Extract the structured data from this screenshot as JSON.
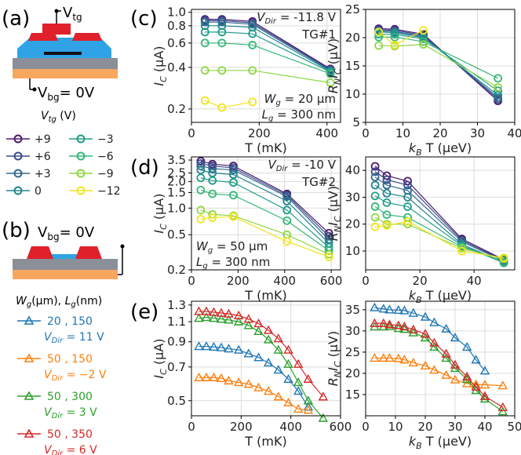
{
  "figure": {
    "panel_letters": [
      "(a)",
      "(b)",
      "(c)",
      "(d)",
      "(e)"
    ],
    "schematic_a": {
      "vtg_label": "V",
      "vtg_sub": "tg",
      "vbg_label": "V",
      "vbg_sub": "bg",
      "vbg_value": "= 0V"
    },
    "schematic_b": {
      "vbg_label": "V",
      "vbg_sub": "bg",
      "vbg_value": "= 0V"
    },
    "legend_vtg": {
      "title_var": "V",
      "title_sub": "tg",
      "title_unit": " (V)",
      "entries": [
        {
          "label": "+9",
          "color": "#4b1a6e"
        },
        {
          "label": "+6",
          "color": "#3b4a8c"
        },
        {
          "label": "+3",
          "color": "#31688e"
        },
        {
          "label": "0",
          "color": "#23868e"
        },
        {
          "label": "−3",
          "color": "#1f9e89"
        },
        {
          "label": "−6",
          "color": "#35b779"
        },
        {
          "label": "−9",
          "color": "#8fd744"
        },
        {
          "label": "−12",
          "color": "#f1e51d"
        }
      ]
    },
    "legend_wl": {
      "title_w": "W",
      "title_w_sub": "g",
      "title_w_unit": "(μm), ",
      "title_l": "L",
      "title_l_sub": "g",
      "title_l_unit": "(nm)",
      "entries": [
        {
          "wl": "20 ,  150",
          "vdir_var": "V",
          "vdir_sub": "Dir",
          "vdir_val": " = 11 V",
          "color": "#1f77b4"
        },
        {
          "wl": "50 ,  150",
          "vdir_var": "V",
          "vdir_sub": "Dir",
          "vdir_val": " = −2 V",
          "color": "#ff7f0e"
        },
        {
          "wl": "50 ,  300",
          "vdir_var": "V",
          "vdir_sub": "Dir",
          "vdir_val": " = 3 V",
          "color": "#2ca02c"
        },
        {
          "wl": "50 ,  350",
          "vdir_var": "V",
          "vdir_sub": "Dir",
          "vdir_val": " = 6 V",
          "color": "#d62728"
        }
      ]
    }
  },
  "chart_data": [
    {
      "id": "c-left",
      "type": "line",
      "marker": "circle",
      "yscale": "log",
      "xlim": [
        0,
        440
      ],
      "ylim": [
        0.16,
        1.05
      ],
      "xticks": [
        0,
        200,
        400
      ],
      "yticks": [
        0.2,
        0.4,
        0.6,
        0.8,
        1.0
      ],
      "ytick_labels": [
        "0.2",
        "0.4",
        "0.6",
        "0.8",
        "1.0"
      ],
      "xlabel": "T (mK)",
      "ylabel_var": "I",
      "ylabel_sub": "C",
      "ylabel_unit": " (μA)",
      "annotations": [
        {
          "text": "V",
          "sub": "Dir",
          "rest": " = -11.8 V",
          "loc": "top-right"
        },
        {
          "text": "TG#1",
          "loc": "top-right-2"
        },
        {
          "text": "W",
          "sub": "g",
          "rest": " = 20 μm",
          "loc": "bottom-right"
        },
        {
          "text": "L",
          "sub": "g",
          "rest": " = 300 nm",
          "loc": "bottom-right-2"
        }
      ],
      "x": [
        40,
        90,
        180,
        410
      ],
      "series": [
        {
          "name": "+9",
          "values": [
            0.89,
            0.89,
            0.86,
            0.39
          ]
        },
        {
          "name": "+6",
          "values": [
            0.87,
            0.87,
            0.84,
            0.385
          ]
        },
        {
          "name": "+3",
          "values": [
            0.85,
            0.85,
            0.82,
            0.38
          ]
        },
        {
          "name": "0",
          "values": [
            0.8,
            0.8,
            0.78,
            0.375
          ]
        },
        {
          "name": "−3",
          "values": [
            0.72,
            0.72,
            0.7,
            0.37
          ]
        },
        {
          "name": "−6",
          "values": [
            0.6,
            0.6,
            0.58,
            0.36
          ]
        },
        {
          "name": "−9",
          "values": [
            0.38,
            0.38,
            0.38,
            0.31
          ]
        },
        {
          "name": "−12",
          "values": [
            0.23,
            0.205,
            0.225,
            null
          ]
        }
      ]
    },
    {
      "id": "c-right",
      "type": "line",
      "marker": "circle",
      "yscale": "linear",
      "xlim": [
        0,
        40
      ],
      "ylim": [
        5,
        25
      ],
      "xticks": [
        0,
        10,
        20,
        30,
        40
      ],
      "yticks": [
        5,
        10,
        15,
        20,
        25
      ],
      "xlabel_var": "k",
      "xlabel_sub": "B",
      "xlabel_unit": " T (μeV)",
      "ylabel_var": "R",
      "ylabel_sub": "N",
      "ylabel_var2": "I",
      "ylabel_sub2": "C",
      "ylabel_unit": " (μV)",
      "x": [
        3.5,
        7.8,
        15.5,
        35.5
      ],
      "series": [
        {
          "name": "+9",
          "values": [
            21.6,
            21.5,
            20.6,
            8.8
          ]
        },
        {
          "name": "+6",
          "values": [
            21.4,
            21.3,
            20.4,
            9.1
          ]
        },
        {
          "name": "+3",
          "values": [
            21.2,
            21.1,
            20.2,
            9.4
          ]
        },
        {
          "name": "0",
          "values": [
            21.0,
            20.9,
            20.0,
            9.8
          ]
        },
        {
          "name": "−3",
          "values": [
            20.6,
            20.6,
            19.8,
            10.6
          ]
        },
        {
          "name": "−6",
          "values": [
            20.1,
            20.1,
            19.3,
            12.8
          ]
        },
        {
          "name": "−9",
          "values": [
            18.6,
            18.5,
            18.8,
            11.2
          ]
        },
        {
          "name": "−12",
          "values": [
            21.0,
            18.7,
            21.3,
            null
          ]
        }
      ]
    },
    {
      "id": "d-left",
      "type": "line",
      "marker": "circle",
      "yscale": "log",
      "xlim": [
        0,
        640
      ],
      "ylim": [
        0.2,
        3.8
      ],
      "xticks": [
        0,
        200,
        400,
        600
      ],
      "yticks": [
        0.2,
        0.5,
        1.0,
        1.5,
        2.0,
        2.5,
        3.5
      ],
      "ytick_labels": [
        "0.2",
        "0.5",
        "1.0",
        "1.5",
        "2.0",
        "2.5",
        "3.5"
      ],
      "xlabel": "T (mK)",
      "ylabel_var": "I",
      "ylabel_sub": "C",
      "ylabel_unit": " (μA)",
      "annotations": [
        {
          "text": "V",
          "sub": "Dir",
          "rest": " = -10 V",
          "loc": "top-right"
        },
        {
          "text": "TG#2",
          "loc": "top-right-2"
        },
        {
          "text": "W",
          "sub": "g",
          "rest": " = 50 μm",
          "loc": "bottom-left"
        },
        {
          "text": "L",
          "sub": "g",
          "rest": " = 300 nm",
          "loc": "bottom-left-2"
        }
      ],
      "x": [
        40,
        90,
        180,
        410,
        590
      ],
      "series": [
        {
          "name": "+9",
          "values": [
            3.4,
            3.15,
            3.0,
            1.45,
            0.52
          ]
        },
        {
          "name": "+6",
          "values": [
            3.2,
            3.0,
            2.85,
            1.4,
            0.48
          ]
        },
        {
          "name": "+3",
          "values": [
            3.0,
            2.8,
            2.7,
            1.35,
            0.44
          ]
        },
        {
          "name": "0",
          "values": [
            2.7,
            2.5,
            2.4,
            1.2,
            0.4
          ]
        },
        {
          "name": "−3",
          "values": [
            2.2,
            2.05,
            1.95,
            0.95,
            0.36
          ]
        },
        {
          "name": "−6",
          "values": [
            1.6,
            1.45,
            1.4,
            0.72,
            0.33
          ]
        },
        {
          "name": "−9",
          "values": [
            0.95,
            0.85,
            0.82,
            0.5,
            0.3
          ]
        },
        {
          "name": "−12",
          "values": [
            0.75,
            0.78,
            0.8,
            0.42,
            0.28
          ]
        }
      ]
    },
    {
      "id": "d-right",
      "type": "line",
      "marker": "circle",
      "yscale": "linear",
      "xlim": [
        0,
        55
      ],
      "ylim": [
        3,
        45
      ],
      "xticks": [
        0,
        20,
        40
      ],
      "yticks": [
        10,
        20,
        30,
        40
      ],
      "xlabel_var": "k",
      "xlabel_sub": "B",
      "xlabel_unit": " T (μeV)",
      "ylabel_var": "R",
      "ylabel_sub": "N",
      "ylabel_var2": "I",
      "ylabel_sub2": "C",
      "ylabel_unit": " (μV)",
      "x": [
        3.5,
        7.8,
        15.5,
        35.5,
        51
      ],
      "series": [
        {
          "name": "+9",
          "values": [
            41.5,
            38.0,
            36.0,
            14.5,
            6.8
          ]
        },
        {
          "name": "+6",
          "values": [
            39.5,
            36.5,
            34.5,
            14.0,
            6.5
          ]
        },
        {
          "name": "+3",
          "values": [
            37.5,
            34.5,
            32.5,
            13.5,
            6.2
          ]
        },
        {
          "name": "0",
          "values": [
            34.5,
            31.5,
            30.0,
            12.5,
            5.8
          ]
        },
        {
          "name": "−3",
          "values": [
            30.5,
            28.0,
            26.5,
            12.0,
            5.6
          ]
        },
        {
          "name": "−6",
          "values": [
            26.5,
            23.5,
            22.5,
            11.5,
            6.0
          ]
        },
        {
          "name": "−9",
          "values": [
            22.5,
            20.0,
            20.0,
            11.0,
            7.0
          ]
        },
        {
          "name": "−12",
          "values": [
            19.0,
            19.5,
            21.0,
            10.0,
            7.5
          ]
        }
      ]
    },
    {
      "id": "e-left",
      "type": "line",
      "marker": "triangle",
      "yscale": "log",
      "xlim": [
        0,
        600
      ],
      "ylim": [
        0.43,
        1.35
      ],
      "xticks": [
        0,
        200,
        400,
        600
      ],
      "yticks": [
        0.5,
        0.7,
        0.9,
        1.1,
        1.3
      ],
      "ytick_labels": [
        "0.5",
        "0.7",
        "0.9",
        "1.1",
        "1.3"
      ],
      "xlabel": "T (mK)",
      "ylabel_var": "I",
      "ylabel_sub": "C",
      "ylabel_unit": " (μA)",
      "series": [
        {
          "name": "20, 150",
          "x": [
            30,
            60,
            90,
            120,
            150,
            190,
            230,
            270,
            310,
            350,
            390,
            430,
            470
          ],
          "values": [
            0.86,
            0.86,
            0.855,
            0.85,
            0.84,
            0.83,
            0.8,
            0.77,
            0.73,
            0.68,
            0.62,
            0.55,
            0.47
          ]
        },
        {
          "name": "50, 150",
          "x": [
            30,
            60,
            90,
            120,
            150,
            190,
            230,
            270,
            310,
            350,
            390,
            430,
            470
          ],
          "values": [
            0.63,
            0.63,
            0.63,
            0.625,
            0.61,
            0.6,
            0.59,
            0.57,
            0.55,
            0.52,
            0.49,
            0.46,
            0.455
          ]
        },
        {
          "name": "50, 300",
          "x": [
            30,
            60,
            90,
            120,
            150,
            190,
            230,
            270,
            310,
            350,
            390,
            430,
            470,
            530
          ],
          "values": [
            1.14,
            1.15,
            1.14,
            1.13,
            1.12,
            1.1,
            1.06,
            1.0,
            0.92,
            0.83,
            0.72,
            0.6,
            0.5,
            0.42
          ]
        },
        {
          "name": "50, 350",
          "x": [
            30,
            60,
            90,
            120,
            150,
            190,
            230,
            270,
            310,
            350,
            390,
            430,
            470,
            530
          ],
          "values": [
            1.22,
            1.22,
            1.21,
            1.2,
            1.19,
            1.17,
            1.13,
            1.08,
            1.01,
            0.93,
            0.83,
            0.72,
            0.62,
            0.52
          ]
        }
      ]
    },
    {
      "id": "e-right",
      "type": "line",
      "marker": "triangle",
      "yscale": "linear",
      "xlim": [
        0,
        50
      ],
      "ylim": [
        10,
        37
      ],
      "xticks": [
        0,
        10,
        20,
        30,
        40,
        50
      ],
      "yticks": [
        15,
        20,
        25,
        30,
        35
      ],
      "xlabel_var": "k",
      "xlabel_sub": "B",
      "xlabel_unit": " T (μeV)",
      "ylabel_var": "R",
      "ylabel_sub": "N",
      "ylabel_var2": "I",
      "ylabel_sub2": "C",
      "ylabel_unit": " (μV)",
      "series": [
        {
          "name": "20, 150",
          "x": [
            3,
            6,
            8,
            11,
            13,
            16,
            20,
            23,
            27,
            30,
            34,
            37,
            40
          ],
          "values": [
            35.5,
            35.2,
            35.0,
            34.9,
            34.8,
            34.2,
            33.3,
            32.0,
            30.5,
            28.4,
            26.2,
            23.2,
            20.6
          ]
        },
        {
          "name": "50, 150",
          "x": [
            3,
            6,
            8,
            11,
            13,
            16,
            20,
            23,
            27,
            30,
            34,
            37,
            40,
            46
          ],
          "values": [
            23.6,
            23.6,
            23.6,
            23.5,
            23.2,
            22.5,
            21.8,
            20.8,
            19.6,
            18.5,
            17.6,
            17.4,
            17.3,
            17.1
          ]
        },
        {
          "name": "50, 300",
          "x": [
            3,
            6,
            8,
            11,
            13,
            16,
            20,
            23,
            27,
            30,
            34,
            37,
            40,
            46
          ],
          "values": [
            31.0,
            31.0,
            31.1,
            30.6,
            30.4,
            29.6,
            28.4,
            26.2,
            23.6,
            21.2,
            18.6,
            16.0,
            14.0,
            11.0
          ]
        },
        {
          "name": "50, 350",
          "x": [
            3,
            6,
            8,
            11,
            13,
            16,
            20,
            23,
            27,
            30,
            34,
            37,
            40,
            46
          ],
          "values": [
            31.8,
            31.8,
            31.5,
            31.3,
            31.0,
            30.3,
            29.3,
            27.2,
            24.6,
            22.0,
            19.2,
            16.8,
            14.6,
            12.0
          ]
        }
      ]
    }
  ]
}
